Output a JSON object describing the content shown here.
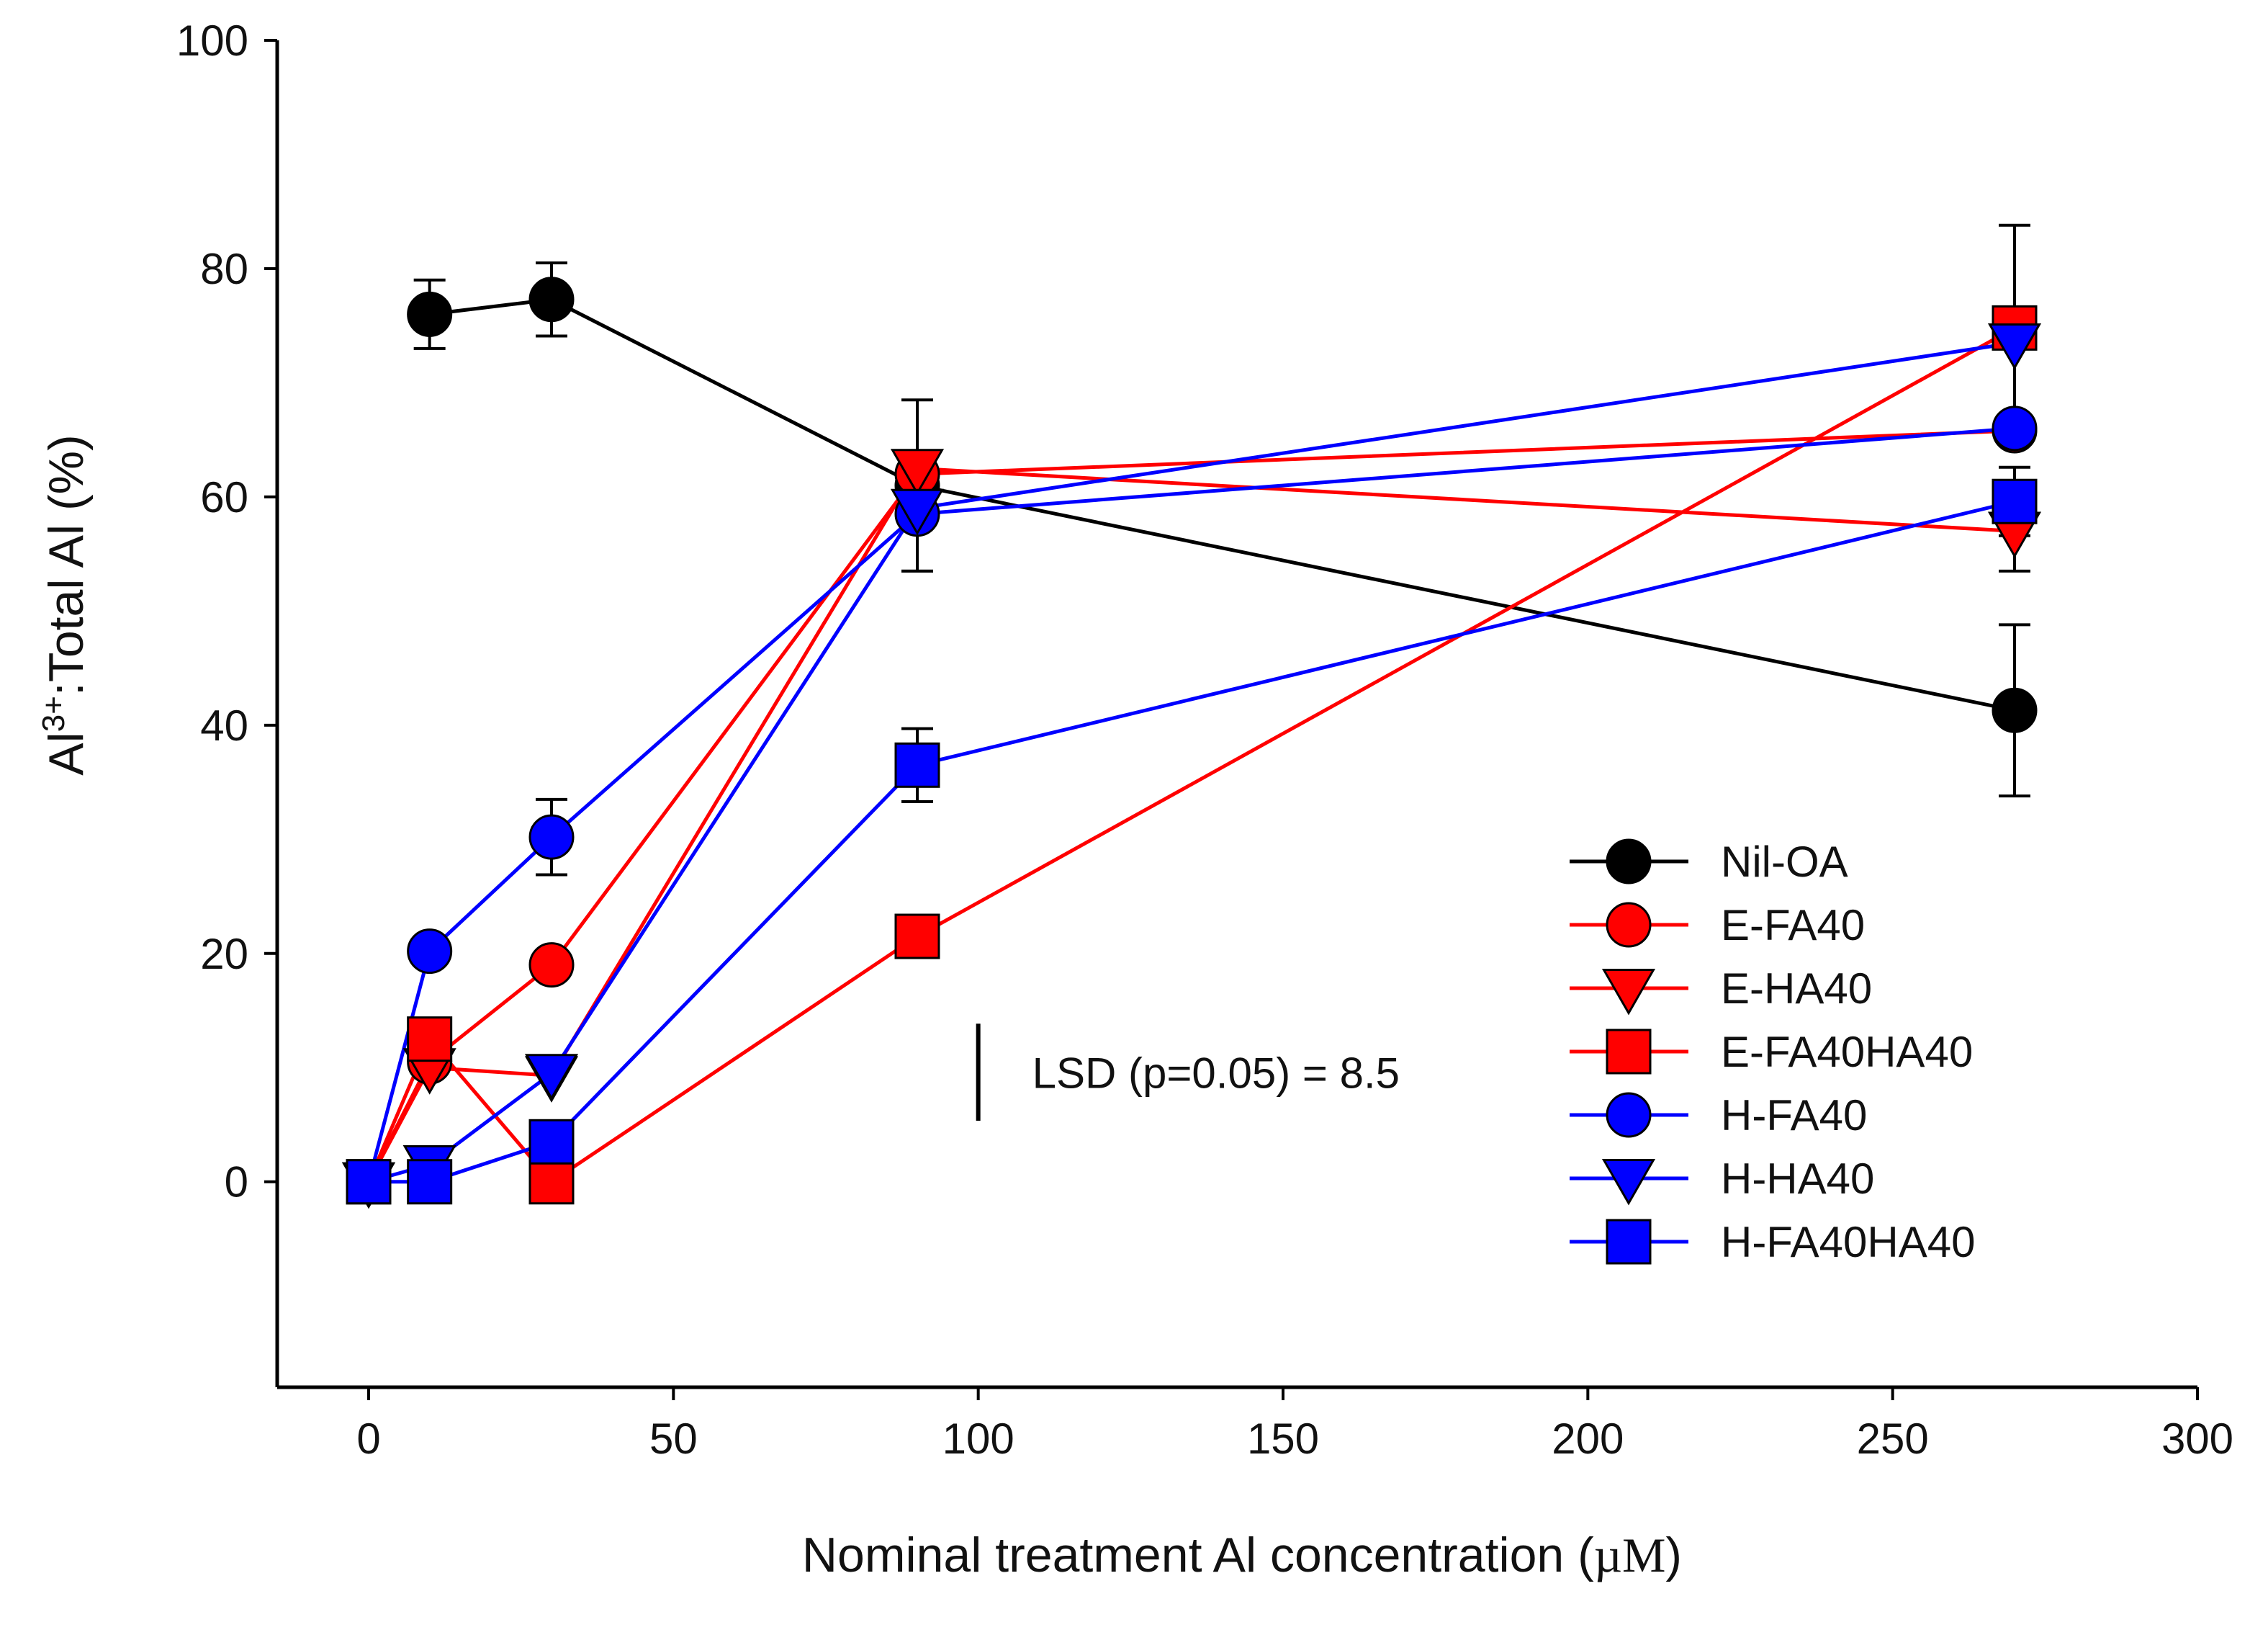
{
  "chart_data": {
    "type": "line",
    "xlabel_prefix": "Nominal treatment Al concentration (",
    "xlabel_unit": "µM",
    "xlabel_suffix": ")",
    "ylabel_main": "Al",
    "ylabel_sup": "3+",
    "ylabel_rest": ":Total Al (%)",
    "xlim": [
      -15,
      300
    ],
    "ylim": [
      -18,
      100
    ],
    "xticks": [
      0,
      50,
      100,
      150,
      200,
      250,
      300
    ],
    "yticks": [
      0,
      20,
      40,
      60,
      80,
      100
    ],
    "annotation": "LSD (p=0.05) = 8.5",
    "lsd_value": 8.5,
    "lsd_x": 100,
    "lsd_y_center": 9.6,
    "legend_position": "center-right",
    "series": [
      {
        "name": "Nil-OA",
        "color": "#000000",
        "marker": "circle",
        "x": [
          10,
          30,
          90,
          270
        ],
        "y": [
          76,
          77.3,
          61,
          41.3
        ],
        "err": [
          3,
          3.2,
          7.5,
          7.5
        ]
      },
      {
        "name": "E-FA40",
        "color": "#ff0000",
        "marker": "circle",
        "x": [
          0,
          10,
          30,
          90,
          270
        ],
        "y": [
          0,
          10.5,
          19,
          62,
          65.8
        ],
        "err": [
          0,
          0,
          0,
          0,
          0
        ]
      },
      {
        "name": "E-HA40",
        "color": "#ff0000",
        "marker": "triangle-down",
        "x": [
          0,
          10,
          30,
          90,
          270
        ],
        "y": [
          0,
          10,
          9.3,
          62.5,
          57
        ],
        "err": [
          0,
          0,
          0,
          0,
          3.5
        ]
      },
      {
        "name": "E-FA40HA40",
        "color": "#ff0000",
        "marker": "square",
        "x": [
          0,
          10,
          30,
          90,
          270
        ],
        "y": [
          0,
          12.5,
          0,
          21.5,
          74.8
        ],
        "err": [
          0,
          0,
          0,
          0,
          9
        ]
      },
      {
        "name": "H-FA40",
        "color": "#0000ff",
        "marker": "circle",
        "x": [
          0,
          10,
          30,
          90,
          270
        ],
        "y": [
          0,
          20.2,
          30.2,
          58.5,
          66
        ],
        "err": [
          0,
          0,
          3.3,
          5,
          0
        ]
      },
      {
        "name": "H-HA40",
        "color": "#0000ff",
        "marker": "triangle-down",
        "x": [
          0,
          10,
          30,
          90,
          270
        ],
        "y": [
          0,
          1.5,
          9.5,
          59,
          73.5
        ],
        "err": [
          0,
          0,
          0,
          0,
          0
        ]
      },
      {
        "name": "H-FA40HA40",
        "color": "#0000ff",
        "marker": "square",
        "x": [
          0,
          10,
          30,
          90,
          270
        ],
        "y": [
          0,
          0,
          3.5,
          36.5,
          59.6
        ],
        "err": [
          0,
          0,
          0,
          3.2,
          3
        ]
      }
    ]
  }
}
